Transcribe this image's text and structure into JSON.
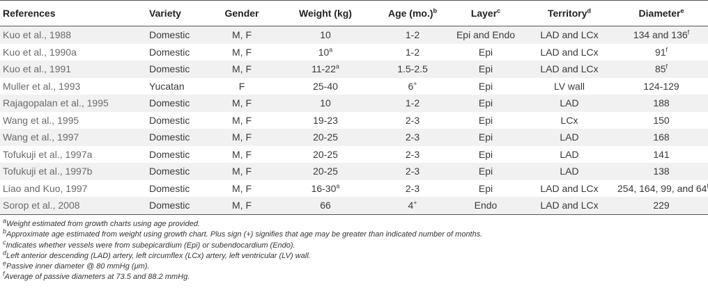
{
  "headers": {
    "references": "References",
    "variety": "Variety",
    "gender": "Gender",
    "weight": "Weight (kg)",
    "age": "Age (mo.)",
    "age_sup": "b",
    "layer": "Layer",
    "layer_sup": "c",
    "territory": "Territory",
    "territory_sup": "d",
    "diameter": "Diameter",
    "diameter_sup": "e"
  },
  "rows": [
    {
      "ref": "Kuo et al., 1988",
      "variety": "Domestic",
      "gender": "M, F",
      "weight": "10",
      "weight_sup": "",
      "age": "1-2",
      "age_sup": "",
      "layer": "Epi and Endo",
      "territory": "LAD and LCx",
      "diameter": "134 and 136",
      "diameter_sup": "f"
    },
    {
      "ref": "Kuo et al., 1990a",
      "variety": "Domestic",
      "gender": "M, F",
      "weight": "10",
      "weight_sup": "a",
      "age": "1-2",
      "age_sup": "",
      "layer": "Epi",
      "territory": "LAD and LCx",
      "diameter": "91",
      "diameter_sup": "f"
    },
    {
      "ref": "Kuo et al., 1991",
      "variety": "Domestic",
      "gender": "M, F",
      "weight": "11-22",
      "weight_sup": "a",
      "age": "1.5-2.5",
      "age_sup": "",
      "layer": "Epi",
      "territory": "LAD and LCx",
      "diameter": "85",
      "diameter_sup": "f"
    },
    {
      "ref": "Muller et al., 1993",
      "variety": "Yucatan",
      "gender": "F",
      "weight": "25-40",
      "weight_sup": "",
      "age": "6",
      "age_sup": "+",
      "layer": "Epi",
      "territory": "LV wall",
      "diameter": "124-129",
      "diameter_sup": ""
    },
    {
      "ref": "Rajagopalan et al., 1995",
      "variety": "Domestic",
      "gender": "M, F",
      "weight": "10",
      "weight_sup": "",
      "age": "1-2",
      "age_sup": "",
      "layer": "Epi",
      "territory": "LAD",
      "diameter": "188",
      "diameter_sup": ""
    },
    {
      "ref": "Wang et al., 1995",
      "variety": "Domestic",
      "gender": "M, F",
      "weight": "19-23",
      "weight_sup": "",
      "age": "2-3",
      "age_sup": "",
      "layer": "Epi",
      "territory": "LCx",
      "diameter": "150",
      "diameter_sup": ""
    },
    {
      "ref": "Wang et al., 1997",
      "variety": "Domestic",
      "gender": "M, F",
      "weight": "20-25",
      "weight_sup": "",
      "age": "2-3",
      "age_sup": "",
      "layer": "Epi",
      "territory": "LAD",
      "diameter": "168",
      "diameter_sup": ""
    },
    {
      "ref": "Tofukuji et al., 1997a",
      "variety": "Domestic",
      "gender": "M, F",
      "weight": "20-25",
      "weight_sup": "",
      "age": "2-3",
      "age_sup": "",
      "layer": "Epi",
      "territory": "LAD",
      "diameter": "141",
      "diameter_sup": ""
    },
    {
      "ref": "Tofukuji et al., 1997b",
      "variety": "Domestic",
      "gender": "M, F",
      "weight": "20-25",
      "weight_sup": "",
      "age": "2-3",
      "age_sup": "",
      "layer": "Epi",
      "territory": "LAD",
      "diameter": "138",
      "diameter_sup": ""
    },
    {
      "ref": "Liao and Kuo, 1997",
      "variety": "Domestic",
      "gender": "M, F",
      "weight": "16-30",
      "weight_sup": "a",
      "age": "2-3",
      "age_sup": "",
      "layer": "Epi",
      "territory": "LAD and LCx",
      "diameter": "254, 164, 99, and 64",
      "diameter_sup": "f"
    },
    {
      "ref": "Sorop et al., 2008",
      "variety": "Domestic",
      "gender": "M, F",
      "weight": "66",
      "weight_sup": "",
      "age": "4",
      "age_sup": "+",
      "layer": "Endo",
      "territory": "LAD and LCx",
      "diameter": "229",
      "diameter_sup": ""
    }
  ],
  "footnotes": [
    {
      "mark": "a",
      "text": "Weight estimated from growth charts using age provided."
    },
    {
      "mark": "b",
      "text": "Approximate age estimated from weight using growth chart. Plus sign (+) signifies that age may be greater than indicated number of months."
    },
    {
      "mark": "c",
      "text": "Indicates whether vessels were from subepicardium (Epi) or subendocardium (Endo)."
    },
    {
      "mark": "d",
      "text": "Left anterior descending (LAD) artery, left circumflex (LCx) artery, left ventricular (LV) wall."
    },
    {
      "mark": "e",
      "text": "Passive inner diameter @ 80 mmHg (μm)."
    },
    {
      "mark": "f",
      "text": "Average of passive diameters at 73.5 and 88.2 mmHg."
    }
  ]
}
